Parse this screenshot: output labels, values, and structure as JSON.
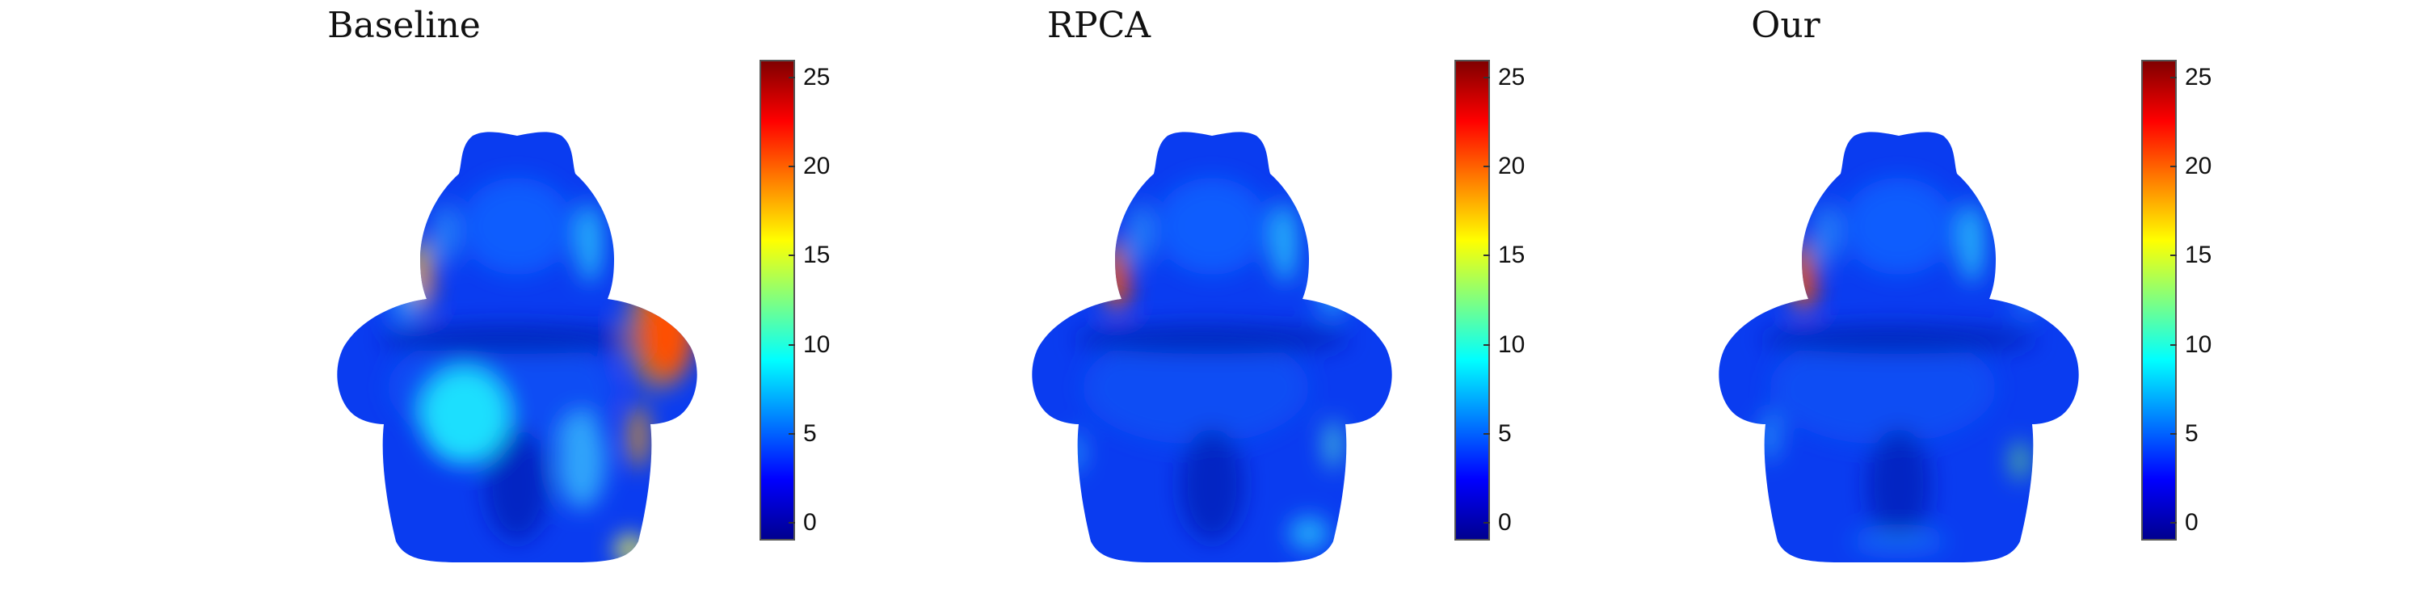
{
  "figure": {
    "panels": [
      {
        "title": "Baseline",
        "variant": "baseline"
      },
      {
        "title": "RPCA",
        "variant": "rpca"
      },
      {
        "title": "Our",
        "variant": "our"
      }
    ],
    "colorbar": {
      "min": -1,
      "max": 26,
      "ticks": [
        "0",
        "5",
        "10",
        "15",
        "20",
        "25"
      ],
      "tick_values": [
        0,
        5,
        10,
        15,
        20,
        25
      ],
      "colormap": "jet",
      "colors": [
        "#00008f",
        "#0000ff",
        "#0080ff",
        "#00ffff",
        "#80ff80",
        "#ffff00",
        "#ff8000",
        "#ff0000",
        "#800000"
      ]
    }
  }
}
